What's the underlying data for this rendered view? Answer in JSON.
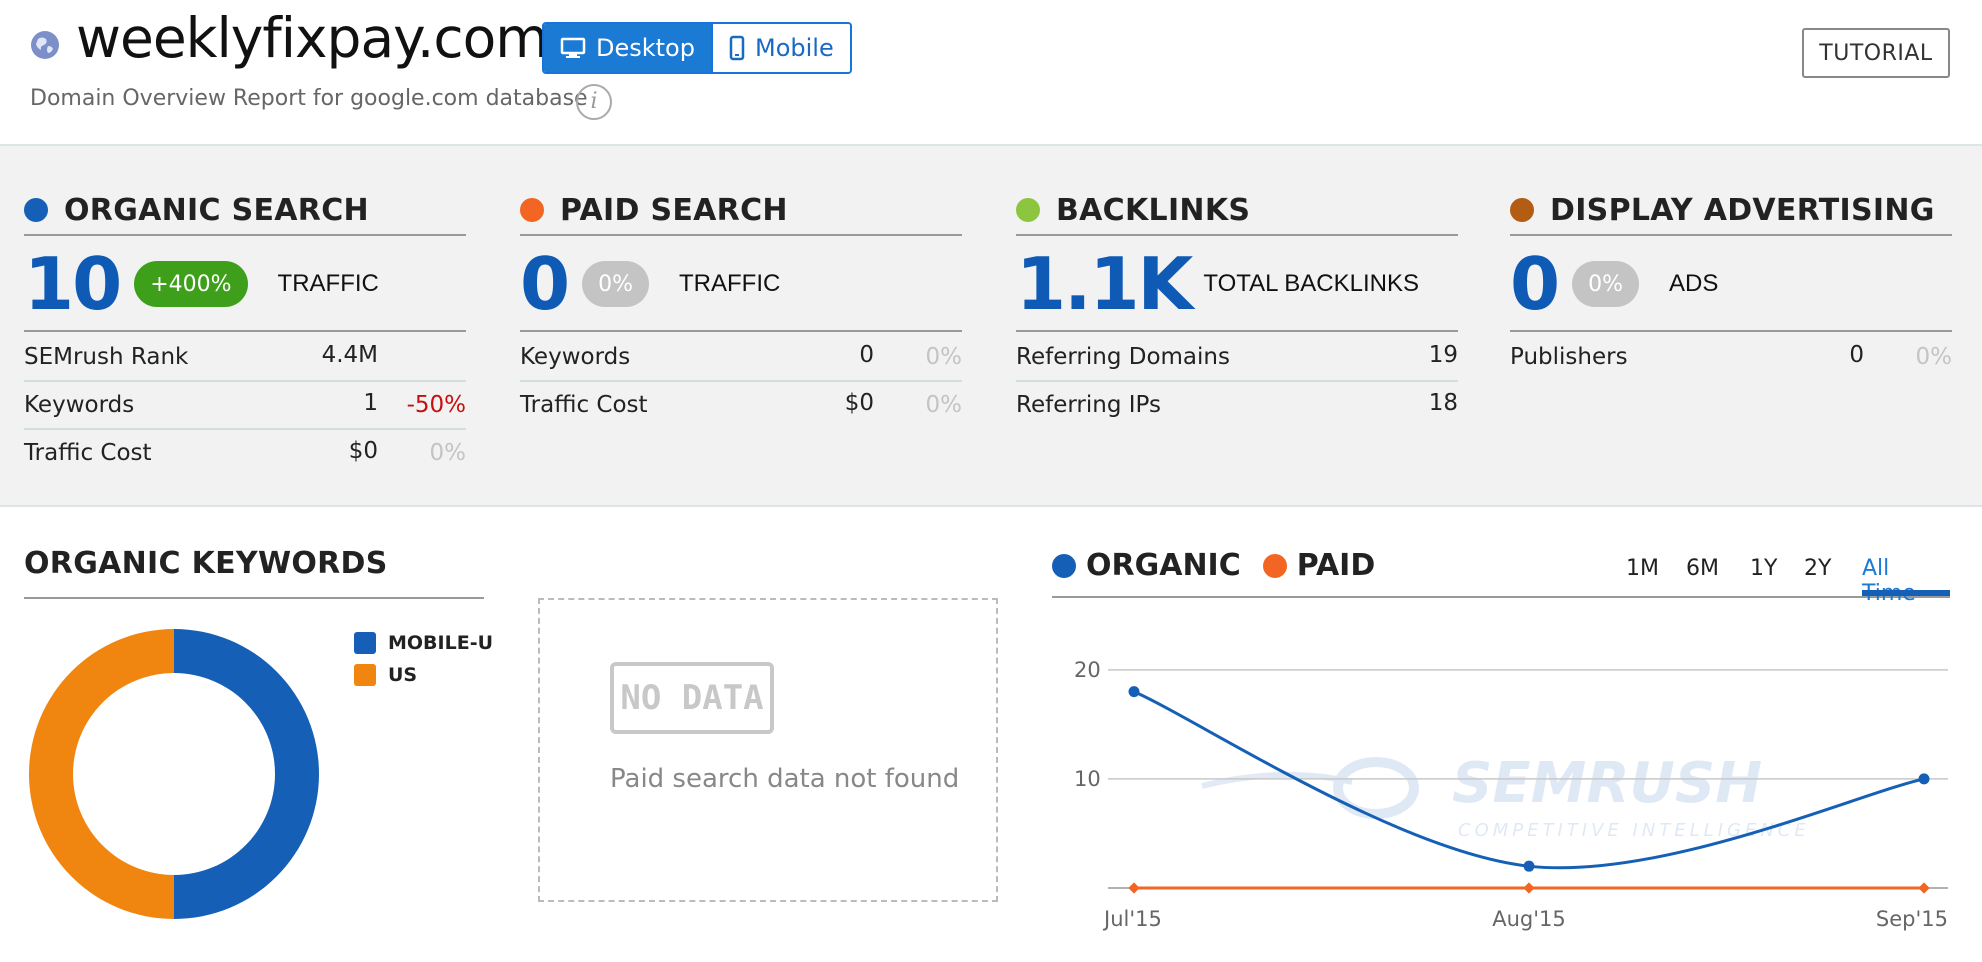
{
  "header": {
    "domain": "weeklyfixpay.com",
    "subtitle": "Domain Overview Report for google.com database",
    "device_desktop": "Desktop",
    "device_mobile": "Mobile",
    "tutorial": "TUTORIAL",
    "info": "i"
  },
  "organic": {
    "title": "ORGANIC SEARCH",
    "color": "#1560b6",
    "big": "10",
    "pill": "+400%",
    "big_label": "TRAFFIC",
    "rows": [
      {
        "label": "SEMrush Rank",
        "value": "4.4M",
        "change": ""
      },
      {
        "label": "Keywords",
        "value": "1",
        "change": "-50%"
      },
      {
        "label": "Traffic Cost",
        "value": "$0",
        "change": "0%"
      }
    ]
  },
  "paid": {
    "title": "PAID SEARCH",
    "color": "#f26522",
    "big": "0",
    "pill": "0%",
    "big_label": "TRAFFIC",
    "rows": [
      {
        "label": "Keywords",
        "value": "0",
        "change": "0%"
      },
      {
        "label": "Traffic Cost",
        "value": "$0",
        "change": "0%"
      }
    ]
  },
  "backlinks": {
    "title": "BACKLINKS",
    "color": "#8cc63f",
    "big": "1.1K",
    "big_label": "TOTAL BACKLINKS",
    "rows": [
      {
        "label": "Referring Domains",
        "value": "19"
      },
      {
        "label": "Referring IPs",
        "value": "18"
      }
    ]
  },
  "display": {
    "title": "DISPLAY ADVERTISING",
    "color": "#b35c14",
    "big": "0",
    "pill": "0%",
    "big_label": "ADS",
    "rows": [
      {
        "label": "Publishers",
        "value": "0",
        "change": "0%"
      }
    ]
  },
  "organic_keywords": {
    "title": "ORGANIC KEYWORDS",
    "legend": [
      {
        "label": "MOBILE-U",
        "color": "#1560b6"
      },
      {
        "label": "US",
        "color": "#f0850f"
      }
    ]
  },
  "paid_box": {
    "badge": "NO DATA",
    "message": "Paid search data not found"
  },
  "trend": {
    "legend_organic": "ORGANIC",
    "legend_paid": "PAID",
    "organic_color": "#1560b6",
    "paid_color": "#f26522",
    "ranges": [
      "1M",
      "6M",
      "1Y",
      "2Y",
      "All Time"
    ],
    "active_range": "All Time",
    "watermark": "SEMRUSH",
    "watermark_sub": "COMPETITIVE INTELLIGENCE"
  },
  "chart_data": [
    {
      "type": "pie",
      "title": "ORGANIC KEYWORDS",
      "categories": [
        "MOBILE-U",
        "US"
      ],
      "values": [
        50,
        50
      ]
    },
    {
      "type": "line",
      "x": [
        "Jul'15",
        "Aug'15",
        "Sep'15"
      ],
      "series": [
        {
          "name": "ORGANIC",
          "values": [
            18,
            2,
            10
          ]
        },
        {
          "name": "PAID",
          "values": [
            0,
            0,
            0
          ]
        }
      ],
      "ylim": [
        0,
        22
      ],
      "yticks": [
        "10",
        "20"
      ],
      "grid": true
    }
  ]
}
